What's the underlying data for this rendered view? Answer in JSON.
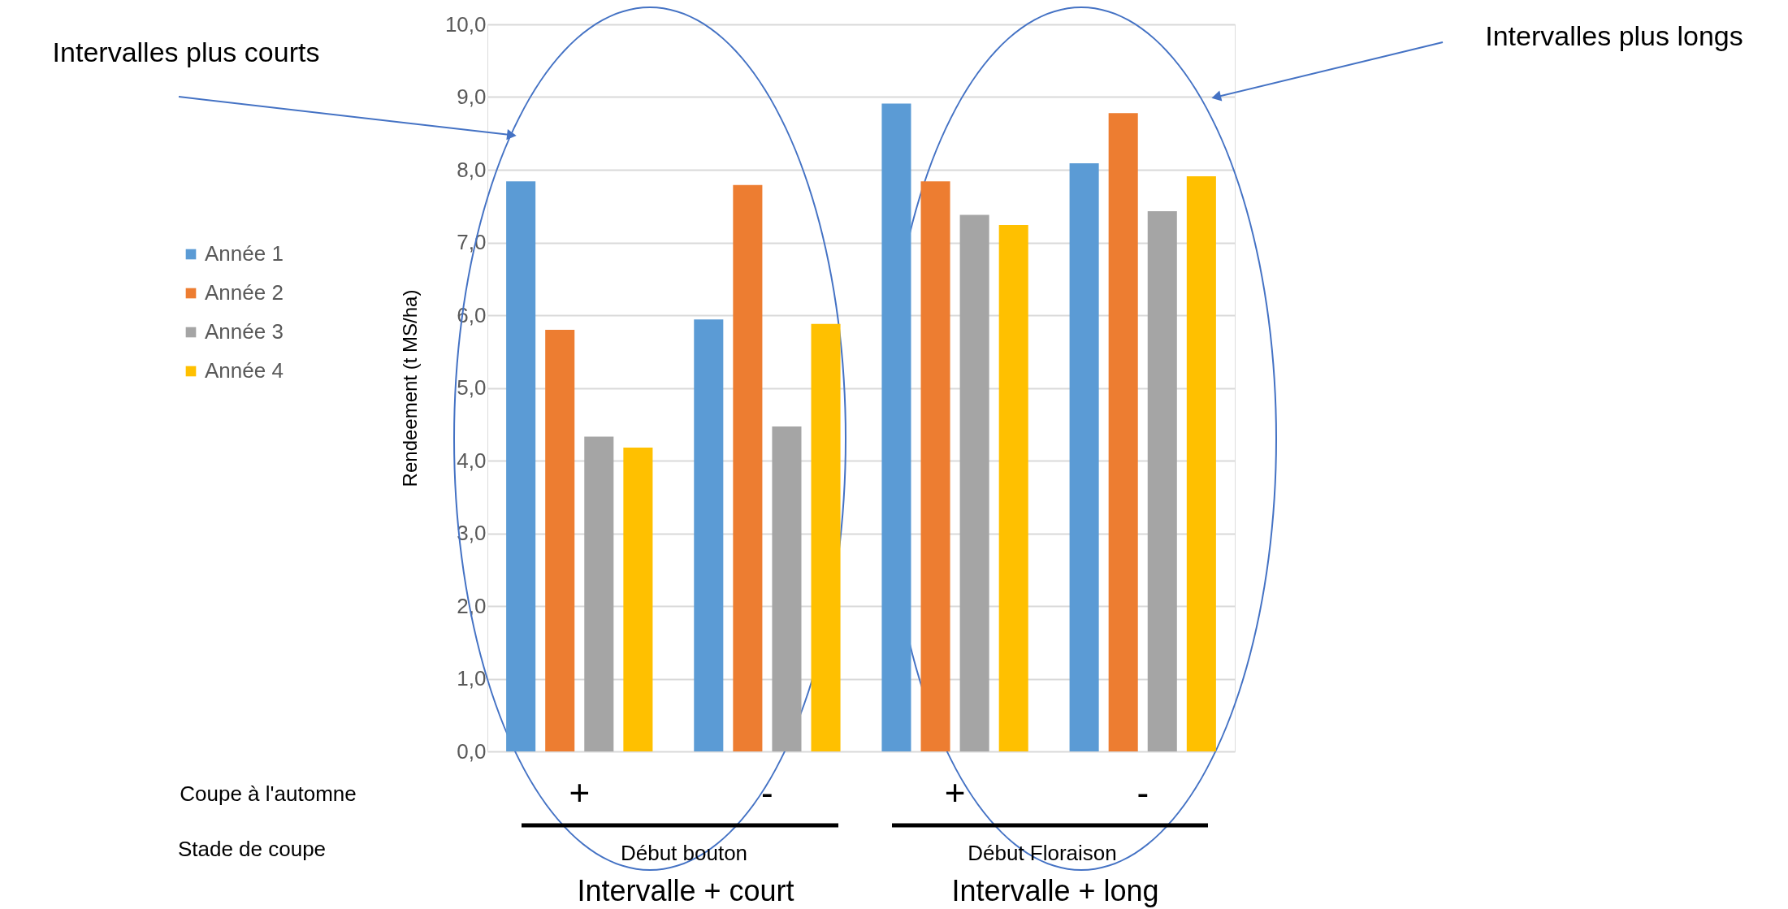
{
  "chart_data": {
    "type": "bar",
    "ylabel": "Rendeement (t MS/ha)",
    "categories": [
      "+",
      "-",
      "+",
      "-"
    ],
    "series": [
      {
        "name": "Année 1",
        "color": "#5b9bd5",
        "values": [
          7.84,
          5.94,
          8.91,
          8.09
        ]
      },
      {
        "name": "Année 2",
        "color": "#ed7d31",
        "values": [
          5.8,
          7.79,
          7.84,
          8.78
        ]
      },
      {
        "name": "Année 3",
        "color": "#a5a5a5",
        "values": [
          4.33,
          4.47,
          7.38,
          7.43
        ]
      },
      {
        "name": "Année 4",
        "color": "#ffc000",
        "values": [
          4.18,
          5.88,
          7.24,
          7.91
        ]
      }
    ],
    "ylim": [
      0,
      10
    ],
    "yticks": [
      {
        "value": 0,
        "label": "0,0"
      },
      {
        "value": 1,
        "label": "1,0"
      },
      {
        "value": 2,
        "label": "2,0"
      },
      {
        "value": 3,
        "label": "3,0"
      },
      {
        "value": 4,
        "label": "4,0"
      },
      {
        "value": 5,
        "label": "5,0"
      },
      {
        "value": 6,
        "label": "6,0"
      },
      {
        "value": 7,
        "label": "7,0"
      },
      {
        "value": 8,
        "label": "8,0"
      },
      {
        "value": 9,
        "label": "9,0"
      },
      {
        "value": 10,
        "label": "10,0"
      }
    ],
    "grid": "y",
    "legend": "left",
    "annotations": [
      "Intervalles plus courts",
      "Intervalles plus longs",
      "Coupe à l'automne",
      "Stade de coupe",
      "Début bouton",
      "Début Floraison",
      "Intervalle + court",
      "Intervalle + long"
    ]
  }
}
